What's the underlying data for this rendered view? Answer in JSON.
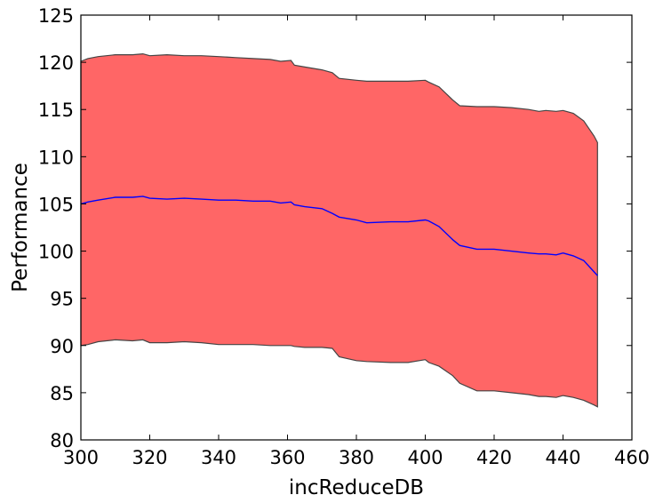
{
  "chart_data": {
    "type": "area",
    "title": "",
    "xlabel": "incReduceDB",
    "ylabel": "Performance",
    "xlim": [
      300,
      460
    ],
    "ylim": [
      80,
      125
    ],
    "grid": false,
    "xticks": [
      300,
      320,
      340,
      360,
      380,
      400,
      420,
      440,
      460
    ],
    "yticks": [
      80,
      85,
      90,
      95,
      100,
      105,
      110,
      115,
      120,
      125
    ],
    "colors": {
      "band_fill": "#ff6666",
      "band_edge": "#444444",
      "mean_line": "#0000ff"
    },
    "x": [
      300,
      302,
      305,
      310,
      315,
      318,
      320,
      325,
      330,
      335,
      340,
      345,
      350,
      355,
      358,
      361,
      362,
      365,
      370,
      373,
      375,
      380,
      383,
      390,
      395,
      400,
      401,
      404,
      408,
      410,
      415,
      420,
      425,
      430,
      433,
      435,
      438,
      440,
      443,
      446,
      449,
      450
    ],
    "mean": [
      105.0,
      105.2,
      105.4,
      105.7,
      105.7,
      105.8,
      105.6,
      105.5,
      105.6,
      105.5,
      105.4,
      105.4,
      105.3,
      105.3,
      105.1,
      105.2,
      104.9,
      104.7,
      104.5,
      104.0,
      103.6,
      103.3,
      103.0,
      103.1,
      103.1,
      103.3,
      103.2,
      102.6,
      101.2,
      100.6,
      100.2,
      100.2,
      100.0,
      99.8,
      99.7,
      99.7,
      99.6,
      99.8,
      99.5,
      99.0,
      97.8,
      97.4
    ],
    "upper": [
      120.1,
      120.4,
      120.6,
      120.8,
      120.8,
      120.9,
      120.7,
      120.8,
      120.7,
      120.7,
      120.6,
      120.5,
      120.4,
      120.3,
      120.1,
      120.2,
      119.7,
      119.5,
      119.2,
      118.9,
      118.3,
      118.1,
      118.0,
      118.0,
      118.0,
      118.1,
      117.9,
      117.4,
      116.0,
      115.4,
      115.3,
      115.3,
      115.2,
      115.0,
      114.8,
      114.9,
      114.8,
      114.9,
      114.6,
      113.8,
      112.2,
      111.5
    ],
    "lower": [
      90.0,
      90.1,
      90.4,
      90.6,
      90.5,
      90.6,
      90.3,
      90.3,
      90.4,
      90.3,
      90.1,
      90.1,
      90.1,
      90.0,
      90.0,
      90.0,
      89.9,
      89.8,
      89.8,
      89.7,
      88.8,
      88.4,
      88.3,
      88.2,
      88.2,
      88.5,
      88.2,
      87.8,
      86.8,
      86.0,
      85.2,
      85.2,
      85.0,
      84.8,
      84.6,
      84.6,
      84.5,
      84.7,
      84.5,
      84.2,
      83.7,
      83.5
    ]
  }
}
